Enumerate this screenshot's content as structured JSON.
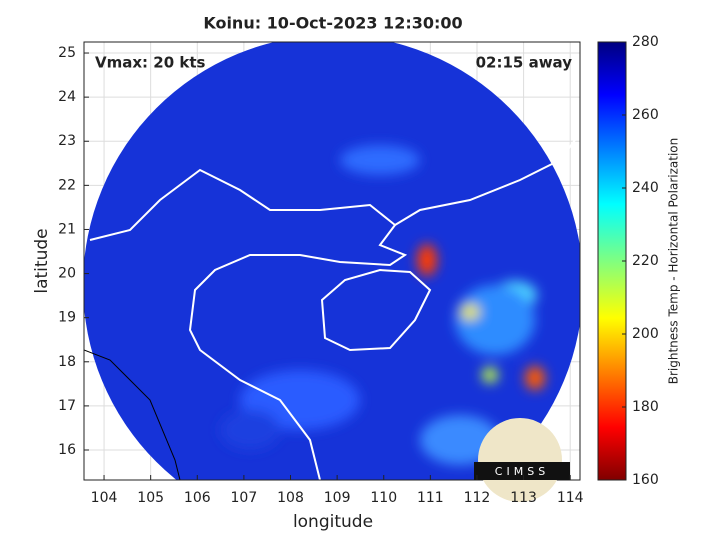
{
  "chart_data": {
    "type": "map",
    "title": "Koinu: 10-Oct-2023 12:30:00",
    "x_label": "longitude",
    "y_label": "latitude",
    "annotations": [
      "Vmax: 20 kts",
      "02:15 away"
    ],
    "logo_text": "CIMSS",
    "xlim": [
      103.57,
      114.21
    ],
    "xticks": [
      104,
      105,
      106,
      107,
      108,
      109,
      110,
      111,
      112,
      113,
      114
    ],
    "ylim": [
      15.32,
      25.25
    ],
    "yticks": [
      16,
      17,
      18,
      19,
      20,
      21,
      22,
      23,
      24,
      25
    ],
    "grid": true,
    "colorbar": {
      "label": "Brightness Temp - Horizontal Polarization",
      "colormap": "jet",
      "lim": [
        160,
        280
      ],
      "ticks": [
        160,
        180,
        200,
        220,
        240,
        260,
        280
      ]
    }
  }
}
